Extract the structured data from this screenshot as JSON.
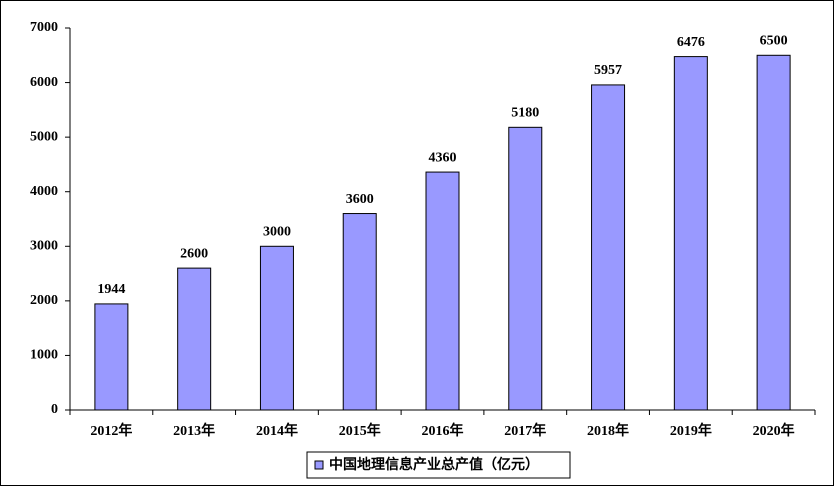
{
  "chart_data": {
    "type": "bar",
    "categories": [
      "2012年",
      "2013年",
      "2014年",
      "2015年",
      "2016年",
      "2017年",
      "2018年",
      "2019年",
      "2020年"
    ],
    "series": [
      {
        "name": "中国地理信息产业总产值（亿元）",
        "color": "#9999ff",
        "values": [
          1944,
          2600,
          3000,
          3600,
          4360,
          5180,
          5957,
          6476,
          6500
        ]
      }
    ],
    "ylim": [
      0,
      7000
    ],
    "yticks": [
      0,
      1000,
      2000,
      3000,
      4000,
      5000,
      6000,
      7000
    ],
    "grid": false,
    "legend": "bottom"
  }
}
